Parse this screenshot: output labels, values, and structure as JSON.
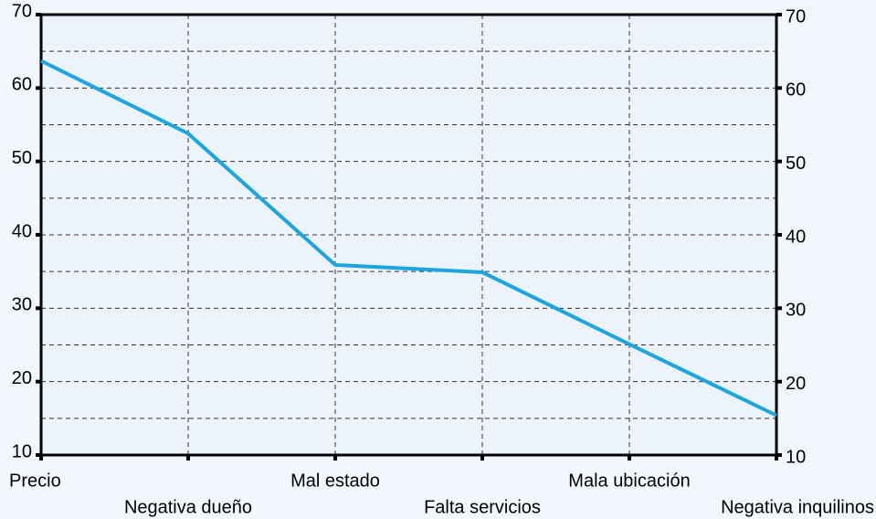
{
  "chart_data": {
    "type": "line",
    "categories": [
      "Precio",
      "Negativa dueño",
      "Mal estado",
      "Falta servicios",
      "Mala ubicación",
      "Negativa inquilinos"
    ],
    "series": [
      {
        "name": null,
        "color": "#1ba6df",
        "values": [
          63.7,
          53.8,
          35.9,
          34.9,
          25.1,
          15.4
        ]
      }
    ],
    "ylim": [
      10,
      70
    ],
    "yticks": [
      10,
      20,
      30,
      40,
      50,
      60,
      70
    ],
    "y2lim": [
      10,
      70
    ],
    "y2ticks": [
      10,
      20,
      30,
      40,
      50,
      60,
      70
    ],
    "grid": true
  }
}
